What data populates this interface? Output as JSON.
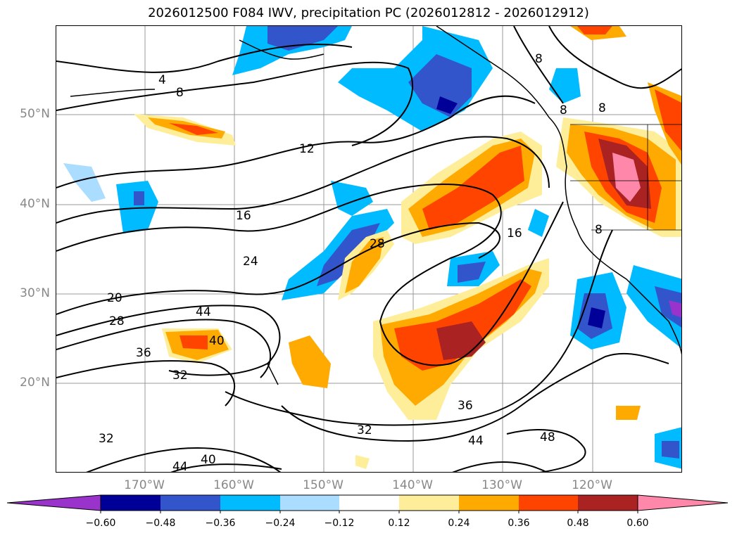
{
  "title": "2026012500 F084 IWV, precipitation PC (2026012812 - 2026012912)",
  "lat_labels": [
    "50°N",
    "40°N",
    "30°N",
    "20°N"
  ],
  "lon_labels": [
    "170°W",
    "160°W",
    "150°W",
    "140°W",
    "130°W",
    "120°W"
  ],
  "colorbar": {
    "colors": [
      "#9933cc",
      "#000099",
      "#3355cc",
      "#00bbff",
      "#aaddff",
      "#ffffff",
      "#ffee99",
      "#ffaa00",
      "#ff4400",
      "#aa2222",
      "#ff88aa"
    ],
    "ticks": [
      "−0.60",
      "−0.48",
      "−0.36",
      "−0.24",
      "−0.12",
      "0.12",
      "0.24",
      "0.36",
      "0.48",
      "0.60"
    ]
  },
  "contour_labels": [
    "4",
    "8",
    "8",
    "8",
    "8",
    "8",
    "12",
    "16",
    "16",
    "24",
    "20",
    "28",
    "28",
    "44",
    "40",
    "36",
    "32",
    "36",
    "32",
    "44",
    "48",
    "32",
    "40",
    "44"
  ]
}
